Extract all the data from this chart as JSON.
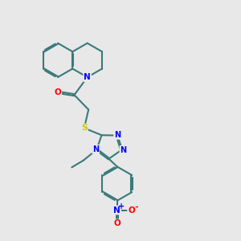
{
  "background_color": "#e8e8e8",
  "bond_color": "#3a7a7a",
  "N_color": "#0000ff",
  "O_color": "#ff0000",
  "S_color": "#cccc00",
  "line_width": 1.5,
  "dbo": 0.04,
  "figsize": [
    3.0,
    3.0
  ],
  "dpi": 100,
  "xlim": [
    0,
    10
  ],
  "ylim": [
    0,
    10
  ]
}
